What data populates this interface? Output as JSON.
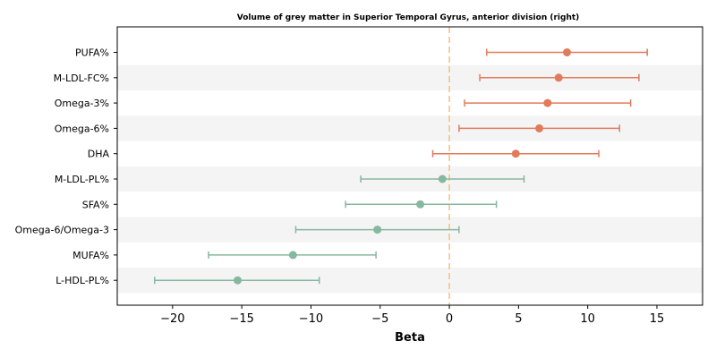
{
  "chart_data": {
    "type": "forest",
    "title": "Volume of grey matter in Superior Temporal Gyrus, anterior division (right)",
    "xlabel": "Beta",
    "ylabel": "",
    "xlim": [
      -24.0,
      18.3
    ],
    "xticks": [
      -20,
      -15,
      -10,
      -5,
      0,
      5,
      10,
      15
    ],
    "xtick_labels": [
      "−20",
      "−15",
      "−10",
      "−5",
      "0",
      "5",
      "10",
      "15"
    ],
    "reference_line": 0,
    "colors": {
      "positive": "#e07b5c",
      "negative": "#86b79f",
      "reference": "#f5c07a",
      "band": "#f4f4f4"
    },
    "rows": [
      {
        "label": "PUFA%",
        "beta": 8.5,
        "ci_low": 2.7,
        "ci_high": 14.3
      },
      {
        "label": "M-LDL-FC%",
        "beta": 7.9,
        "ci_low": 2.2,
        "ci_high": 13.7
      },
      {
        "label": "Omega-3%",
        "beta": 7.1,
        "ci_low": 1.1,
        "ci_high": 13.1
      },
      {
        "label": "Omega-6%",
        "beta": 6.5,
        "ci_low": 0.7,
        "ci_high": 12.3
      },
      {
        "label": "DHA",
        "beta": 4.8,
        "ci_low": -1.2,
        "ci_high": 10.8
      },
      {
        "label": "M-LDL-PL%",
        "beta": -0.5,
        "ci_low": -6.4,
        "ci_high": 5.4
      },
      {
        "label": "SFA%",
        "beta": -2.1,
        "ci_low": -7.5,
        "ci_high": 3.4
      },
      {
        "label": "Omega-6/Omega-3",
        "beta": -5.2,
        "ci_low": -11.1,
        "ci_high": 0.7
      },
      {
        "label": "MUFA%",
        "beta": -11.3,
        "ci_low": -17.4,
        "ci_high": -5.3
      },
      {
        "label": "L-HDL-PL%",
        "beta": -15.3,
        "ci_low": -21.3,
        "ci_high": -9.4
      }
    ]
  }
}
